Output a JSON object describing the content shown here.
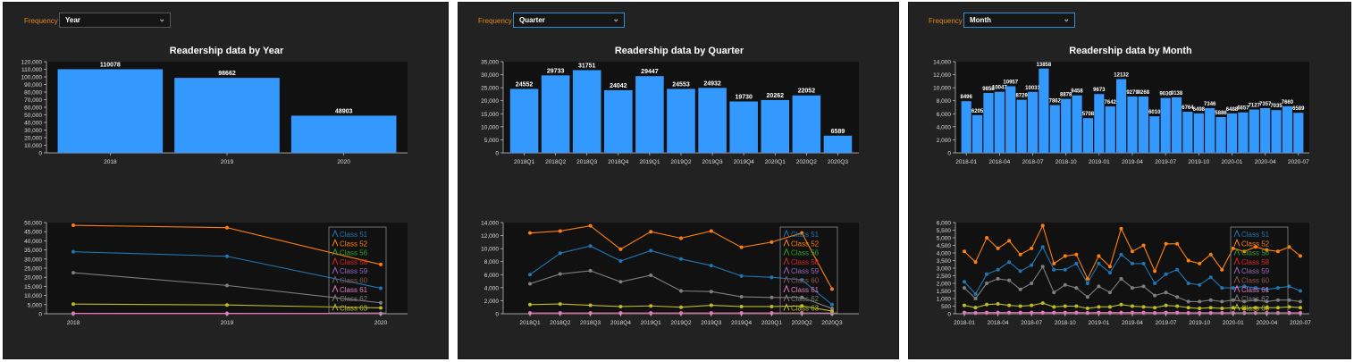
{
  "panels": [
    {
      "frequency_label": "Frequency",
      "selected": "Year",
      "title": "Readership data by Year"
    },
    {
      "frequency_label": "Frequency",
      "selected": "Quarter",
      "title": "Readership data by Quarter"
    },
    {
      "frequency_label": "Frequency",
      "selected": "Month",
      "title": "Readership data by Month"
    }
  ],
  "legend_entries": [
    "Class 51",
    "Class 52",
    "Class 56",
    "Class 58",
    "Class 59",
    "Class 60",
    "Class 61",
    "Class 62",
    "Class 63"
  ],
  "colors": {
    "bar": "#3399ff",
    "panel_bg": "#222222",
    "plot_bg": "#111111",
    "frequency_label": "#e08a1e",
    "Class 51": "#1f77b4",
    "Class 52": "#ff7f0e",
    "Class 56": "#2ca02c",
    "Class 58": "#d62728",
    "Class 59": "#9467bd",
    "Class 60": "#8c564b",
    "Class 61": "#e377c2",
    "Class 62": "#7f7f7f",
    "Class 63": "#bcbd22"
  },
  "chart_data": [
    {
      "type": "bar",
      "categories": [
        "2018",
        "2019",
        "2020"
      ],
      "values": [
        110078,
        98662,
        48903
      ],
      "title": "Readership data by Year",
      "ylim": [
        0,
        120000
      ],
      "yticks": [
        "0",
        "10,000",
        "20,000",
        "30,000",
        "40,000",
        "50,000",
        "60,000",
        "70,000",
        "80,000",
        "90,000",
        "100,000",
        "110,000",
        "120,000"
      ],
      "data_labels": true
    },
    {
      "type": "line",
      "x": [
        "2018",
        "2019",
        "2020"
      ],
      "ylim": [
        0,
        50000
      ],
      "yticks": [
        "0",
        "5,000",
        "10,000",
        "15,000",
        "20,000",
        "25,000",
        "30,000",
        "35,000",
        "40,000",
        "45,000",
        "50,000"
      ],
      "legend": "top-right",
      "series": [
        {
          "name": "Class 51",
          "values": [
            34000,
            31500,
            14000
          ]
        },
        {
          "name": "Class 52",
          "values": [
            48500,
            47200,
            27000
          ]
        },
        {
          "name": "Class 56",
          "values": [
            100,
            100,
            100
          ]
        },
        {
          "name": "Class 58",
          "values": [
            100,
            100,
            100
          ]
        },
        {
          "name": "Class 59",
          "values": [
            150,
            150,
            100
          ]
        },
        {
          "name": "Class 60",
          "values": [
            200,
            200,
            100
          ]
        },
        {
          "name": "Class 61",
          "values": [
            250,
            200,
            150
          ]
        },
        {
          "name": "Class 62",
          "values": [
            22500,
            15500,
            6000
          ]
        },
        {
          "name": "Class 63",
          "values": [
            5300,
            4800,
            3200
          ]
        }
      ]
    },
    {
      "type": "bar",
      "categories": [
        "2018Q1",
        "2018Q2",
        "2018Q3",
        "2018Q4",
        "2019Q1",
        "2019Q2",
        "2019Q3",
        "2019Q4",
        "2020Q1",
        "2020Q2",
        "2020Q3"
      ],
      "values": [
        24552,
        29733,
        31751,
        24042,
        29447,
        24553,
        24932,
        19730,
        20262,
        22052,
        6589
      ],
      "title": "Readership data by Quarter",
      "ylim": [
        0,
        35000
      ],
      "yticks": [
        "0",
        "5,000",
        "10,000",
        "15,000",
        "20,000",
        "25,000",
        "30,000",
        "35,000"
      ],
      "data_labels": true
    },
    {
      "type": "line",
      "x": [
        "2018Q1",
        "2018Q2",
        "2018Q3",
        "2018Q4",
        "2019Q1",
        "2019Q2",
        "2019Q3",
        "2019Q4",
        "2020Q1",
        "2020Q2",
        "2020Q3"
      ],
      "ylim": [
        0,
        14000
      ],
      "yticks": [
        "0",
        "2,000",
        "4,000",
        "6,000",
        "8,000",
        "10,000",
        "12,000",
        "14,000"
      ],
      "legend": "top-right",
      "series": [
        {
          "name": "Class 51",
          "values": [
            6000,
            9300,
            10400,
            8100,
            9700,
            8400,
            7400,
            5800,
            5600,
            5200,
            1400
          ]
        },
        {
          "name": "Class 52",
          "values": [
            12400,
            12700,
            13500,
            9900,
            12600,
            11600,
            12700,
            10200,
            11000,
            12400,
            3800
          ]
        },
        {
          "name": "Class 56",
          "values": [
            50,
            50,
            50,
            50,
            50,
            50,
            50,
            50,
            50,
            50,
            20
          ]
        },
        {
          "name": "Class 58",
          "values": [
            60,
            60,
            60,
            60,
            60,
            60,
            60,
            60,
            60,
            60,
            20
          ]
        },
        {
          "name": "Class 59",
          "values": [
            80,
            80,
            80,
            80,
            80,
            80,
            80,
            80,
            80,
            80,
            20
          ]
        },
        {
          "name": "Class 60",
          "values": [
            100,
            100,
            100,
            100,
            100,
            100,
            100,
            100,
            100,
            100,
            30
          ]
        },
        {
          "name": "Class 61",
          "values": [
            120,
            120,
            120,
            120,
            120,
            120,
            120,
            120,
            120,
            120,
            40
          ]
        },
        {
          "name": "Class 62",
          "values": [
            4600,
            6100,
            6600,
            4900,
            5900,
            3500,
            3400,
            2600,
            2500,
            2500,
            800
          ]
        },
        {
          "name": "Class 63",
          "values": [
            1400,
            1500,
            1300,
            1100,
            1200,
            1000,
            1300,
            1100,
            1100,
            1200,
            400
          ]
        }
      ]
    },
    {
      "type": "bar",
      "categories": [
        "2018-01",
        "2018-02",
        "2018-03",
        "2018-04",
        "2018-05",
        "2018-06",
        "2018-07",
        "2018-08",
        "2018-09",
        "2018-10",
        "2018-11",
        "2018-12",
        "2019-01",
        "2019-02",
        "2019-03",
        "2019-04",
        "2019-05",
        "2019-06",
        "2019-07",
        "2019-08",
        "2019-09",
        "2019-10",
        "2019-11",
        "2019-12",
        "2020-01",
        "2020-02",
        "2020-03",
        "2020-04",
        "2020-05",
        "2020-06",
        "2020-07"
      ],
      "tick_labels": [
        "2018-01",
        "2018-04",
        "2018-07",
        "2018-10",
        "2019-01",
        "2019-04",
        "2019-07",
        "2019-10",
        "2020-01",
        "2020-04",
        "2020-07"
      ],
      "values": [
        8496,
        6205,
        9858,
        10047,
        10957,
        8729,
        10031,
        13858,
        7862,
        8878,
        9458,
        5708,
        9673,
        7642,
        12132,
        9279,
        9268,
        6010,
        9030,
        9138,
        6764,
        6498,
        7346,
        5886,
        6488,
        6657,
        7127,
        7357,
        7035,
        7660,
        6589
      ],
      "title": "Readership data by Month",
      "ylim": [
        0,
        15000
      ],
      "yticks": [
        "0",
        "2,000",
        "4,000",
        "6,000",
        "8,000",
        "10,000",
        "12,000",
        "14,000"
      ],
      "data_labels": true
    },
    {
      "type": "line",
      "x": [
        "2018-01",
        "2018-02",
        "2018-03",
        "2018-04",
        "2018-05",
        "2018-06",
        "2018-07",
        "2018-08",
        "2018-09",
        "2018-10",
        "2018-11",
        "2018-12",
        "2019-01",
        "2019-02",
        "2019-03",
        "2019-04",
        "2019-05",
        "2019-06",
        "2019-07",
        "2019-08",
        "2019-09",
        "2019-10",
        "2019-11",
        "2019-12",
        "2020-01",
        "2020-02",
        "2020-03",
        "2020-04",
        "2020-05",
        "2020-06",
        "2020-07"
      ],
      "tick_labels": [
        "2018-01",
        "2018-04",
        "2018-07",
        "2018-10",
        "2019-01",
        "2019-04",
        "2019-07",
        "2019-10",
        "2020-01",
        "2020-04",
        "2020-07"
      ],
      "ylim": [
        0,
        6000
      ],
      "yticks": [
        "0",
        "500",
        "1,000",
        "1,500",
        "2,000",
        "2,500",
        "3,000",
        "3,500",
        "4,000",
        "4,500",
        "5,000",
        "5,500",
        "6,000"
      ],
      "legend": "top-right",
      "series": [
        {
          "name": "Class 51",
          "values": [
            2100,
            1300,
            2600,
            2900,
            3400,
            2800,
            3200,
            4400,
            2900,
            2900,
            3300,
            2000,
            3300,
            2700,
            3900,
            3300,
            3300,
            2000,
            2600,
            2900,
            2000,
            1900,
            2400,
            1700,
            1700,
            1800,
            1700,
            1600,
            1700,
            1800,
            1500
          ]
        },
        {
          "name": "Class 52",
          "values": [
            4100,
            3400,
            5000,
            4300,
            4800,
            3900,
            4300,
            5800,
            3300,
            3800,
            3900,
            2300,
            3800,
            3100,
            5600,
            4100,
            4500,
            2800,
            4600,
            4600,
            3500,
            3300,
            3900,
            2900,
            4300,
            4100,
            4400,
            4200,
            4100,
            4400,
            3800
          ]
        },
        {
          "name": "Class 56",
          "values": [
            30,
            25,
            30,
            30,
            30,
            30,
            30,
            30,
            30,
            30,
            30,
            20,
            30,
            30,
            30,
            30,
            30,
            20,
            30,
            30,
            20,
            20,
            20,
            20,
            20,
            20,
            20,
            20,
            20,
            20,
            20
          ]
        },
        {
          "name": "Class 58",
          "values": [
            40,
            30,
            40,
            40,
            40,
            40,
            40,
            40,
            40,
            40,
            40,
            30,
            40,
            40,
            40,
            40,
            40,
            30,
            40,
            40,
            30,
            30,
            30,
            30,
            30,
            30,
            30,
            30,
            30,
            30,
            30
          ]
        },
        {
          "name": "Class 59",
          "values": [
            50,
            40,
            50,
            50,
            50,
            50,
            50,
            50,
            50,
            50,
            50,
            40,
            50,
            50,
            50,
            50,
            50,
            40,
            50,
            50,
            40,
            40,
            40,
            40,
            40,
            40,
            40,
            40,
            40,
            40,
            40
          ]
        },
        {
          "name": "Class 60",
          "values": [
            60,
            50,
            60,
            60,
            60,
            60,
            60,
            60,
            60,
            60,
            60,
            50,
            60,
            60,
            60,
            60,
            60,
            50,
            60,
            60,
            50,
            50,
            50,
            50,
            50,
            50,
            50,
            50,
            50,
            50,
            50
          ]
        },
        {
          "name": "Class 61",
          "values": [
            80,
            60,
            80,
            80,
            80,
            80,
            80,
            80,
            80,
            80,
            80,
            60,
            80,
            80,
            80,
            80,
            80,
            60,
            80,
            80,
            60,
            60,
            60,
            60,
            60,
            60,
            60,
            60,
            60,
            60,
            60
          ]
        },
        {
          "name": "Class 62",
          "values": [
            1700,
            1000,
            2000,
            2300,
            2200,
            1600,
            2000,
            3100,
            1400,
            1900,
            1700,
            1100,
            1800,
            1400,
            2300,
            1700,
            1800,
            1200,
            1400,
            1100,
            800,
            800,
            900,
            800,
            900,
            800,
            900,
            800,
            900,
            900,
            800
          ]
        },
        {
          "name": "Class 63",
          "values": [
            550,
            400,
            600,
            650,
            550,
            500,
            550,
            700,
            450,
            500,
            500,
            350,
            450,
            450,
            600,
            500,
            450,
            400,
            550,
            500,
            400,
            350,
            400,
            350,
            400,
            350,
            400,
            400,
            400,
            450,
            400
          ]
        }
      ]
    }
  ]
}
